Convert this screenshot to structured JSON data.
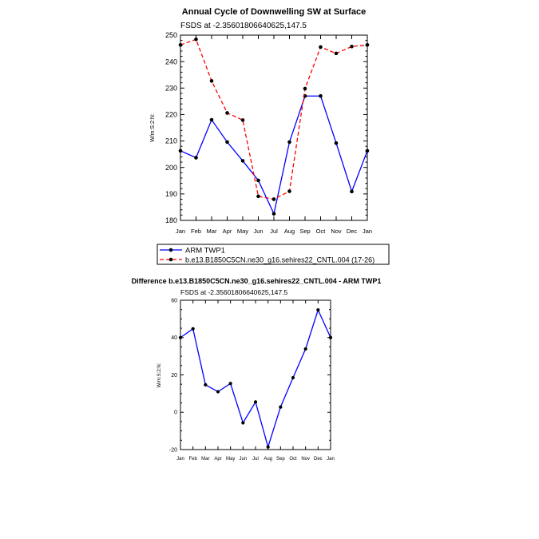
{
  "chart_data": [
    {
      "type": "line",
      "title": "Annual Cycle of Downwelling SW at Surface",
      "subtitle": "FSDS at -2.35601806640625,147.5",
      "ylabel": "W/m:S:2:N:",
      "xlabel": "",
      "categories": [
        "Jan",
        "Feb",
        "Mar",
        "Apr",
        "May",
        "Jun",
        "Jul",
        "Aug",
        "Sep",
        "Oct",
        "Nov",
        "Dec",
        "Jan"
      ],
      "ylim": [
        180,
        250
      ],
      "yticks": [
        180,
        190,
        200,
        210,
        220,
        230,
        240,
        250
      ],
      "series": [
        {
          "name": "ARM TWP1",
          "color": "#0000ff",
          "dash": "solid",
          "values": [
            206.3,
            203.7,
            218.0,
            209.6,
            202.5,
            195.1,
            182.5,
            209.6,
            227.0,
            227.0,
            209.2,
            190.9,
            206.3
          ]
        },
        {
          "name": "b.e13.B1850C5CN.ne30_g16.sehires22_CNTL.004 (17-26)",
          "color": "#ff0000",
          "dash": "dashed",
          "values": [
            246.3,
            248.4,
            232.7,
            220.6,
            217.9,
            189.1,
            188.0,
            191.0,
            229.8,
            245.5,
            243.1,
            245.7,
            246.3
          ]
        }
      ]
    },
    {
      "type": "line",
      "title": "Difference b.e13.B1850C5CN.ne30_g16.sehires22_CNTL.004 - ARM TWP1",
      "subtitle": "FSDS at -2.35601806640625,147.5",
      "ylabel": "W/m:S:2:N:",
      "xlabel": "",
      "categories": [
        "Jan",
        "Feb",
        "Mar",
        "Apr",
        "May",
        "Jun",
        "Jul",
        "Aug",
        "Sep",
        "Oct",
        "Nov",
        "Dec",
        "Jan"
      ],
      "ylim": [
        -20,
        60
      ],
      "yticks": [
        -20,
        0,
        20,
        40,
        60
      ],
      "series": [
        {
          "name": "Difference",
          "color": "#0000ff",
          "dash": "solid",
          "values": [
            40.0,
            44.7,
            14.7,
            11.0,
            15.4,
            -5.7,
            5.5,
            -18.6,
            2.8,
            18.5,
            33.9,
            54.8,
            40.0
          ]
        }
      ]
    }
  ]
}
